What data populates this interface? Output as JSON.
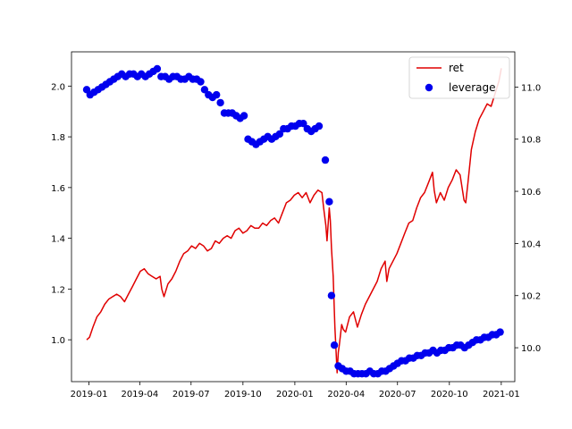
{
  "chart_data": {
    "type": "line",
    "title": "",
    "xlabel": "",
    "x_ticks": [
      "2019-01",
      "2019-04",
      "2019-07",
      "2019-10",
      "2020-01",
      "2020-04",
      "2020-07",
      "2020-10",
      "2021-01"
    ],
    "x_range": [
      "2018-12-01",
      "2021-01-25"
    ],
    "y_left": {
      "ylabel": "",
      "ylim": [
        0.835,
        2.135
      ],
      "ticks": [
        1.0,
        1.2,
        1.4,
        1.6,
        1.8,
        2.0
      ]
    },
    "y_right": {
      "ylabel": "",
      "ylim": [
        9.87,
        11.135
      ],
      "ticks": [
        10.0,
        10.2,
        10.4,
        10.6,
        10.8,
        11.0
      ]
    },
    "legend": {
      "placement": "upper-right",
      "entries": [
        "ret",
        "leverage"
      ]
    },
    "grid": false,
    "series": [
      {
        "name": "ret",
        "type": "line",
        "axis": "left",
        "color": "#e00000",
        "points": [
          [
            "2018-12-28",
            1.0
          ],
          [
            "2019-01-02",
            1.01
          ],
          [
            "2019-01-08",
            1.05
          ],
          [
            "2019-01-15",
            1.09
          ],
          [
            "2019-01-22",
            1.11
          ],
          [
            "2019-01-29",
            1.14
          ],
          [
            "2019-02-05",
            1.16
          ],
          [
            "2019-02-12",
            1.17
          ],
          [
            "2019-02-19",
            1.18
          ],
          [
            "2019-02-26",
            1.17
          ],
          [
            "2019-03-05",
            1.15
          ],
          [
            "2019-03-12",
            1.18
          ],
          [
            "2019-03-19",
            1.21
          ],
          [
            "2019-03-26",
            1.24
          ],
          [
            "2019-04-02",
            1.27
          ],
          [
            "2019-04-09",
            1.28
          ],
          [
            "2019-04-16",
            1.26
          ],
          [
            "2019-04-23",
            1.25
          ],
          [
            "2019-04-30",
            1.24
          ],
          [
            "2019-05-07",
            1.25
          ],
          [
            "2019-05-10",
            1.2
          ],
          [
            "2019-05-14",
            1.17
          ],
          [
            "2019-05-21",
            1.22
          ],
          [
            "2019-05-28",
            1.24
          ],
          [
            "2019-06-04",
            1.27
          ],
          [
            "2019-06-11",
            1.31
          ],
          [
            "2019-06-18",
            1.34
          ],
          [
            "2019-06-25",
            1.35
          ],
          [
            "2019-07-02",
            1.37
          ],
          [
            "2019-07-09",
            1.36
          ],
          [
            "2019-07-16",
            1.38
          ],
          [
            "2019-07-23",
            1.37
          ],
          [
            "2019-07-30",
            1.35
          ],
          [
            "2019-08-06",
            1.36
          ],
          [
            "2019-08-13",
            1.39
          ],
          [
            "2019-08-20",
            1.38
          ],
          [
            "2019-08-27",
            1.4
          ],
          [
            "2019-09-03",
            1.41
          ],
          [
            "2019-09-10",
            1.4
          ],
          [
            "2019-09-17",
            1.43
          ],
          [
            "2019-09-24",
            1.44
          ],
          [
            "2019-10-01",
            1.42
          ],
          [
            "2019-10-08",
            1.43
          ],
          [
            "2019-10-15",
            1.45
          ],
          [
            "2019-10-22",
            1.44
          ],
          [
            "2019-10-29",
            1.44
          ],
          [
            "2019-11-05",
            1.46
          ],
          [
            "2019-11-12",
            1.45
          ],
          [
            "2019-11-19",
            1.47
          ],
          [
            "2019-11-26",
            1.48
          ],
          [
            "2019-12-03",
            1.46
          ],
          [
            "2019-12-10",
            1.5
          ],
          [
            "2019-12-17",
            1.54
          ],
          [
            "2019-12-24",
            1.55
          ],
          [
            "2019-12-31",
            1.57
          ],
          [
            "2020-01-07",
            1.58
          ],
          [
            "2020-01-14",
            1.56
          ],
          [
            "2020-01-21",
            1.58
          ],
          [
            "2020-01-28",
            1.54
          ],
          [
            "2020-02-04",
            1.57
          ],
          [
            "2020-02-11",
            1.59
          ],
          [
            "2020-02-18",
            1.58
          ],
          [
            "2020-02-21",
            1.52
          ],
          [
            "2020-02-25",
            1.45
          ],
          [
            "2020-02-27",
            1.39
          ],
          [
            "2020-03-02",
            1.52
          ],
          [
            "2020-03-04",
            1.47
          ],
          [
            "2020-03-06",
            1.36
          ],
          [
            "2020-03-09",
            1.25
          ],
          [
            "2020-03-12",
            1.05
          ],
          [
            "2020-03-16",
            0.87
          ],
          [
            "2020-03-18",
            0.95
          ],
          [
            "2020-03-20",
            0.98
          ],
          [
            "2020-03-24",
            1.06
          ],
          [
            "2020-03-27",
            1.04
          ],
          [
            "2020-03-31",
            1.03
          ],
          [
            "2020-04-07",
            1.09
          ],
          [
            "2020-04-14",
            1.11
          ],
          [
            "2020-04-21",
            1.05
          ],
          [
            "2020-04-28",
            1.1
          ],
          [
            "2020-05-05",
            1.14
          ],
          [
            "2020-05-12",
            1.17
          ],
          [
            "2020-05-19",
            1.2
          ],
          [
            "2020-05-26",
            1.23
          ],
          [
            "2020-06-02",
            1.28
          ],
          [
            "2020-06-09",
            1.31
          ],
          [
            "2020-06-12",
            1.23
          ],
          [
            "2020-06-16",
            1.28
          ],
          [
            "2020-06-23",
            1.31
          ],
          [
            "2020-06-30",
            1.34
          ],
          [
            "2020-07-07",
            1.38
          ],
          [
            "2020-07-14",
            1.42
          ],
          [
            "2020-07-21",
            1.46
          ],
          [
            "2020-07-28",
            1.47
          ],
          [
            "2020-08-04",
            1.52
          ],
          [
            "2020-08-11",
            1.56
          ],
          [
            "2020-08-18",
            1.58
          ],
          [
            "2020-08-25",
            1.62
          ],
          [
            "2020-09-01",
            1.66
          ],
          [
            "2020-09-04",
            1.59
          ],
          [
            "2020-09-08",
            1.54
          ],
          [
            "2020-09-15",
            1.58
          ],
          [
            "2020-09-22",
            1.55
          ],
          [
            "2020-09-29",
            1.6
          ],
          [
            "2020-10-06",
            1.63
          ],
          [
            "2020-10-13",
            1.67
          ],
          [
            "2020-10-20",
            1.65
          ],
          [
            "2020-10-27",
            1.55
          ],
          [
            "2020-10-30",
            1.54
          ],
          [
            "2020-11-03",
            1.62
          ],
          [
            "2020-11-09",
            1.75
          ],
          [
            "2020-11-16",
            1.82
          ],
          [
            "2020-11-23",
            1.87
          ],
          [
            "2020-11-30",
            1.9
          ],
          [
            "2020-12-07",
            1.93
          ],
          [
            "2020-12-14",
            1.92
          ],
          [
            "2020-12-21",
            1.97
          ],
          [
            "2020-12-28",
            2.02
          ],
          [
            "2021-01-01",
            2.07
          ]
        ]
      },
      {
        "name": "leverage",
        "type": "scatter",
        "axis": "right",
        "color": "#0000ee",
        "points": [
          [
            "2018-12-28",
            10.99
          ],
          [
            "2019-01-03",
            10.97
          ],
          [
            "2019-01-10",
            10.98
          ],
          [
            "2019-01-17",
            10.99
          ],
          [
            "2019-01-24",
            11.0
          ],
          [
            "2019-01-31",
            11.01
          ],
          [
            "2019-02-07",
            11.02
          ],
          [
            "2019-02-14",
            11.03
          ],
          [
            "2019-02-21",
            11.04
          ],
          [
            "2019-02-28",
            11.05
          ],
          [
            "2019-03-07",
            11.04
          ],
          [
            "2019-03-14",
            11.05
          ],
          [
            "2019-03-21",
            11.05
          ],
          [
            "2019-03-28",
            11.04
          ],
          [
            "2019-04-04",
            11.05
          ],
          [
            "2019-04-11",
            11.04
          ],
          [
            "2019-04-18",
            11.05
          ],
          [
            "2019-04-25",
            11.06
          ],
          [
            "2019-05-02",
            11.07
          ],
          [
            "2019-05-09",
            11.04
          ],
          [
            "2019-05-16",
            11.04
          ],
          [
            "2019-05-23",
            11.03
          ],
          [
            "2019-05-30",
            11.04
          ],
          [
            "2019-06-06",
            11.04
          ],
          [
            "2019-06-13",
            11.03
          ],
          [
            "2019-06-20",
            11.03
          ],
          [
            "2019-06-27",
            11.04
          ],
          [
            "2019-07-04",
            11.03
          ],
          [
            "2019-07-11",
            11.03
          ],
          [
            "2019-07-18",
            11.02
          ],
          [
            "2019-07-25",
            10.99
          ],
          [
            "2019-08-01",
            10.97
          ],
          [
            "2019-08-08",
            10.96
          ],
          [
            "2019-08-15",
            10.97
          ],
          [
            "2019-08-22",
            10.94
          ],
          [
            "2019-08-29",
            10.9
          ],
          [
            "2019-09-05",
            10.9
          ],
          [
            "2019-09-12",
            10.9
          ],
          [
            "2019-09-19",
            10.89
          ],
          [
            "2019-09-26",
            10.88
          ],
          [
            "2019-10-03",
            10.89
          ],
          [
            "2019-10-10",
            10.8
          ],
          [
            "2019-10-17",
            10.79
          ],
          [
            "2019-10-24",
            10.78
          ],
          [
            "2019-10-31",
            10.79
          ],
          [
            "2019-11-07",
            10.8
          ],
          [
            "2019-11-14",
            10.81
          ],
          [
            "2019-11-21",
            10.8
          ],
          [
            "2019-11-28",
            10.81
          ],
          [
            "2019-12-05",
            10.82
          ],
          [
            "2019-12-12",
            10.84
          ],
          [
            "2019-12-19",
            10.84
          ],
          [
            "2019-12-26",
            10.85
          ],
          [
            "2020-01-02",
            10.85
          ],
          [
            "2020-01-09",
            10.86
          ],
          [
            "2020-01-16",
            10.86
          ],
          [
            "2020-01-23",
            10.84
          ],
          [
            "2020-01-30",
            10.83
          ],
          [
            "2020-02-06",
            10.84
          ],
          [
            "2020-02-13",
            10.85
          ],
          [
            "2020-02-24",
            10.72
          ],
          [
            "2020-03-02",
            10.56
          ],
          [
            "2020-03-06",
            10.2
          ],
          [
            "2020-03-11",
            10.01
          ],
          [
            "2020-03-18",
            9.93
          ],
          [
            "2020-03-25",
            9.92
          ],
          [
            "2020-04-01",
            9.91
          ],
          [
            "2020-04-08",
            9.91
          ],
          [
            "2020-04-15",
            9.9
          ],
          [
            "2020-04-22",
            9.9
          ],
          [
            "2020-04-29",
            9.9
          ],
          [
            "2020-05-06",
            9.9
          ],
          [
            "2020-05-13",
            9.91
          ],
          [
            "2020-05-20",
            9.9
          ],
          [
            "2020-05-27",
            9.9
          ],
          [
            "2020-06-03",
            9.91
          ],
          [
            "2020-06-10",
            9.91
          ],
          [
            "2020-06-17",
            9.92
          ],
          [
            "2020-06-24",
            9.93
          ],
          [
            "2020-07-01",
            9.94
          ],
          [
            "2020-07-08",
            9.95
          ],
          [
            "2020-07-15",
            9.95
          ],
          [
            "2020-07-22",
            9.96
          ],
          [
            "2020-07-29",
            9.96
          ],
          [
            "2020-08-05",
            9.97
          ],
          [
            "2020-08-12",
            9.97
          ],
          [
            "2020-08-19",
            9.98
          ],
          [
            "2020-08-26",
            9.98
          ],
          [
            "2020-09-02",
            9.99
          ],
          [
            "2020-09-09",
            9.98
          ],
          [
            "2020-09-16",
            9.99
          ],
          [
            "2020-09-23",
            9.99
          ],
          [
            "2020-09-30",
            10.0
          ],
          [
            "2020-10-07",
            10.0
          ],
          [
            "2020-10-14",
            10.01
          ],
          [
            "2020-10-21",
            10.01
          ],
          [
            "2020-10-28",
            10.0
          ],
          [
            "2020-11-04",
            10.01
          ],
          [
            "2020-11-11",
            10.02
          ],
          [
            "2020-11-18",
            10.03
          ],
          [
            "2020-11-25",
            10.03
          ],
          [
            "2020-12-02",
            10.04
          ],
          [
            "2020-12-09",
            10.04
          ],
          [
            "2020-12-16",
            10.05
          ],
          [
            "2020-12-23",
            10.05
          ],
          [
            "2020-12-30",
            10.06
          ]
        ]
      }
    ]
  }
}
